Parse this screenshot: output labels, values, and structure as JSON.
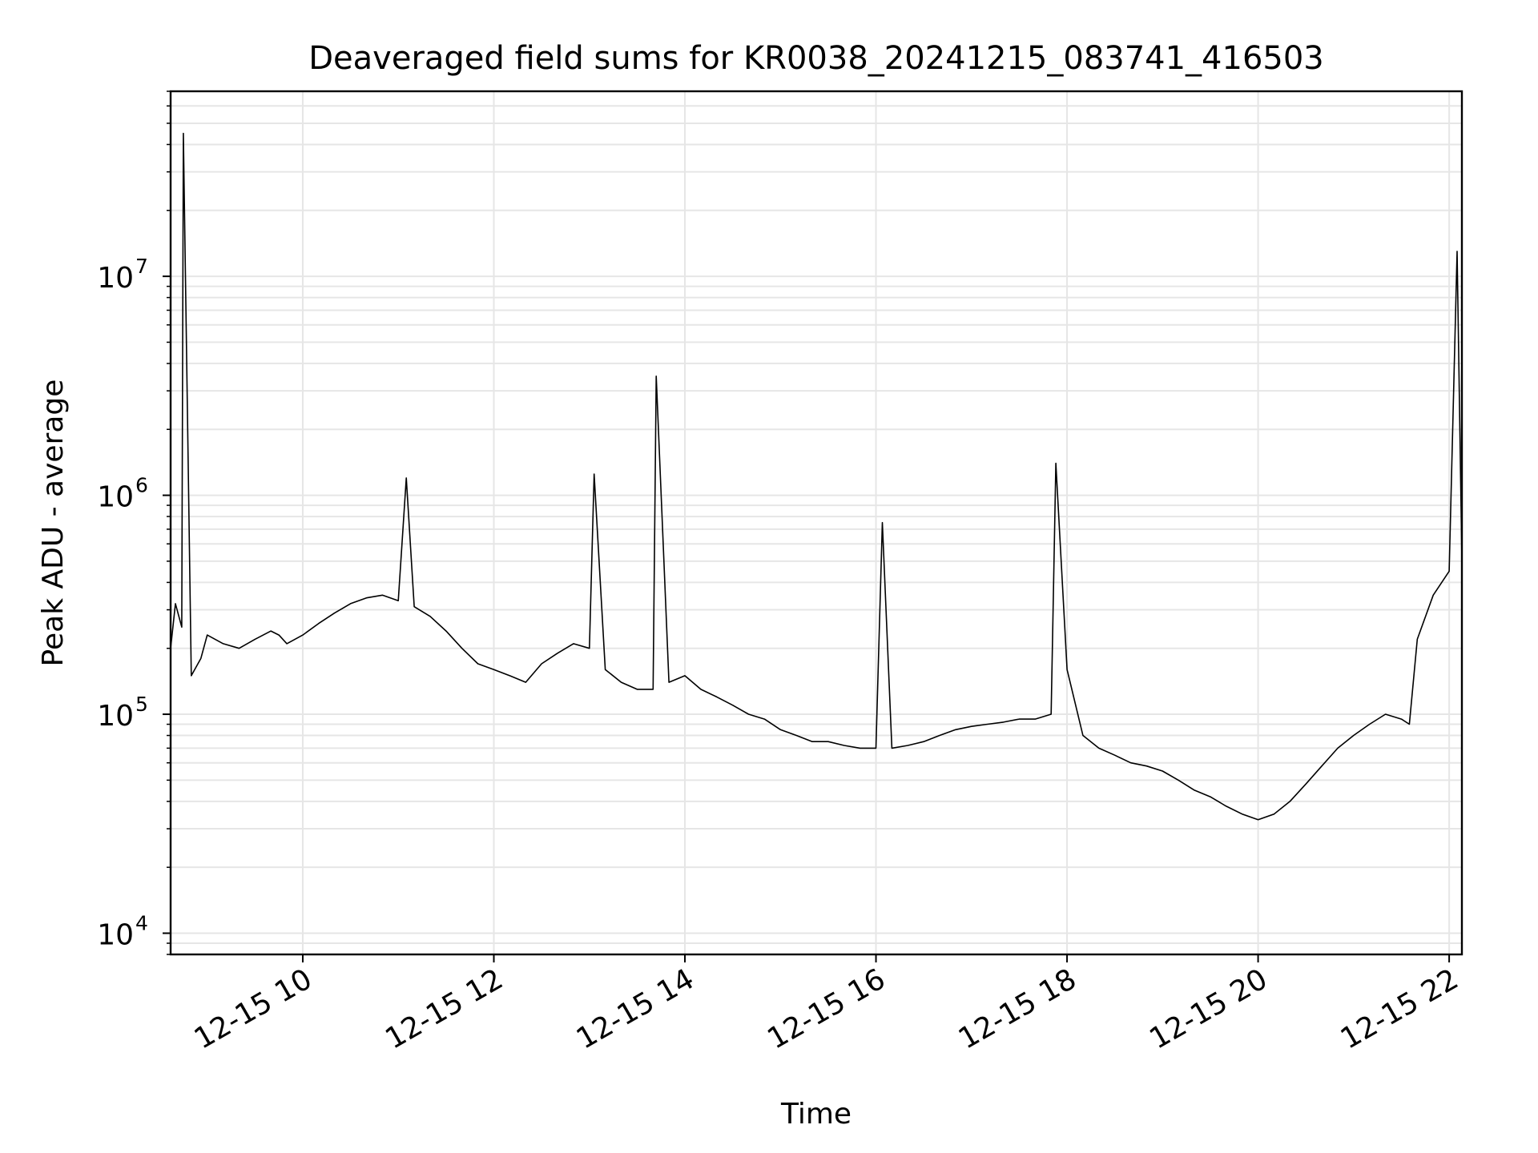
{
  "chart_data": {
    "type": "line",
    "title": "Deaveraged field sums for KR0038_20241215_083741_416503",
    "xlabel": "Time",
    "ylabel": "Peak ADU - average",
    "xscale": "time",
    "yscale": "log",
    "xlim": [
      "2024-12-15 08:37",
      "2024-12-15 22:08"
    ],
    "ylim": [
      8000,
      70000000
    ],
    "grid": "major and minor",
    "legend": "none",
    "line_color": "#000000",
    "grid_color": "#e6e6e6",
    "x_ticks": [
      {
        "value": "2024-12-15 10:00",
        "label": "12-15 10"
      },
      {
        "value": "2024-12-15 12:00",
        "label": "12-15 12"
      },
      {
        "value": "2024-12-15 14:00",
        "label": "12-15 14"
      },
      {
        "value": "2024-12-15 16:00",
        "label": "12-15 16"
      },
      {
        "value": "2024-12-15 18:00",
        "label": "12-15 18"
      },
      {
        "value": "2024-12-15 20:00",
        "label": "12-15 20"
      },
      {
        "value": "2024-12-15 22:00",
        "label": "12-15 22"
      }
    ],
    "y_ticks": [
      {
        "value": 10000,
        "base": "10",
        "exp": "4"
      },
      {
        "value": 100000,
        "base": "10",
        "exp": "5"
      },
      {
        "value": 1000000,
        "base": "10",
        "exp": "6"
      },
      {
        "value": 10000000,
        "base": "10",
        "exp": "7"
      }
    ],
    "series": [
      {
        "time": [
          "2024-12-15 08:37",
          "2024-12-15 08:40",
          "2024-12-15 08:44",
          "2024-12-15 08:45",
          "2024-12-15 08:50",
          "2024-12-15 08:56",
          "2024-12-15 09:00",
          "2024-12-15 09:10",
          "2024-12-15 09:20",
          "2024-12-15 09:30",
          "2024-12-15 09:40",
          "2024-12-15 09:45",
          "2024-12-15 09:50",
          "2024-12-15 10:00",
          "2024-12-15 10:10",
          "2024-12-15 10:20",
          "2024-12-15 10:30",
          "2024-12-15 10:40",
          "2024-12-15 10:50",
          "2024-12-15 11:00",
          "2024-12-15 11:05",
          "2024-12-15 11:10",
          "2024-12-15 11:20",
          "2024-12-15 11:30",
          "2024-12-15 11:40",
          "2024-12-15 11:50",
          "2024-12-15 12:00",
          "2024-12-15 12:10",
          "2024-12-15 12:20",
          "2024-12-15 12:30",
          "2024-12-15 12:40",
          "2024-12-15 12:50",
          "2024-12-15 13:00",
          "2024-12-15 13:03",
          "2024-12-15 13:10",
          "2024-12-15 13:20",
          "2024-12-15 13:30",
          "2024-12-15 13:40",
          "2024-12-15 13:42",
          "2024-12-15 13:50",
          "2024-12-15 14:00",
          "2024-12-15 14:10",
          "2024-12-15 14:20",
          "2024-12-15 14:30",
          "2024-12-15 14:40",
          "2024-12-15 14:50",
          "2024-12-15 15:00",
          "2024-12-15 15:10",
          "2024-12-15 15:20",
          "2024-12-15 15:30",
          "2024-12-15 15:40",
          "2024-12-15 15:50",
          "2024-12-15 16:00",
          "2024-12-15 16:04",
          "2024-12-15 16:10",
          "2024-12-15 16:20",
          "2024-12-15 16:30",
          "2024-12-15 16:40",
          "2024-12-15 16:50",
          "2024-12-15 17:00",
          "2024-12-15 17:10",
          "2024-12-15 17:20",
          "2024-12-15 17:30",
          "2024-12-15 17:40",
          "2024-12-15 17:50",
          "2024-12-15 17:53",
          "2024-12-15 18:00",
          "2024-12-15 18:10",
          "2024-12-15 18:20",
          "2024-12-15 18:30",
          "2024-12-15 18:40",
          "2024-12-15 18:50",
          "2024-12-15 19:00",
          "2024-12-15 19:10",
          "2024-12-15 19:20",
          "2024-12-15 19:30",
          "2024-12-15 19:40",
          "2024-12-15 19:50",
          "2024-12-15 20:00",
          "2024-12-15 20:10",
          "2024-12-15 20:20",
          "2024-12-15 20:30",
          "2024-12-15 20:40",
          "2024-12-15 20:50",
          "2024-12-15 21:00",
          "2024-12-15 21:10",
          "2024-12-15 21:20",
          "2024-12-15 21:30",
          "2024-12-15 21:35",
          "2024-12-15 21:40",
          "2024-12-15 21:50",
          "2024-12-15 22:00",
          "2024-12-15 22:05",
          "2024-12-15 22:08"
        ],
        "values": [
          200000,
          320000,
          250000,
          45000000,
          150000,
          180000,
          230000,
          210000,
          200000,
          220000,
          240000,
          230000,
          210000,
          230000,
          260000,
          290000,
          320000,
          340000,
          350000,
          330000,
          1200000,
          310000,
          280000,
          240000,
          200000,
          170000,
          160000,
          150000,
          140000,
          170000,
          190000,
          210000,
          200000,
          1250000,
          160000,
          140000,
          130000,
          130000,
          3500000,
          140000,
          150000,
          130000,
          120000,
          110000,
          100000,
          95000,
          85000,
          80000,
          75000,
          75000,
          72000,
          70000,
          70000,
          750000,
          70000,
          72000,
          75000,
          80000,
          85000,
          88000,
          90000,
          92000,
          95000,
          95000,
          100000,
          1400000,
          160000,
          80000,
          70000,
          65000,
          60000,
          58000,
          55000,
          50000,
          45000,
          42000,
          38000,
          35000,
          33000,
          35000,
          40000,
          48000,
          58000,
          70000,
          80000,
          90000,
          100000,
          95000,
          90000,
          220000,
          350000,
          450000,
          13000000,
          500000
        ]
      }
    ]
  }
}
